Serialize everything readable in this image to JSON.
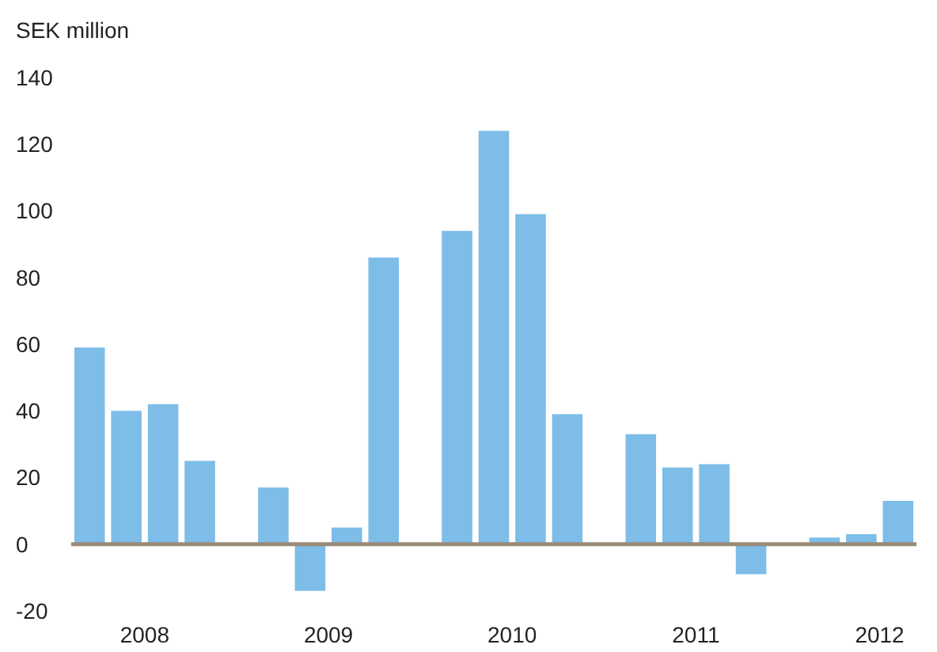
{
  "chart_data": {
    "type": "bar",
    "ylabel": "SEK million",
    "categories": [
      null,
      null,
      null,
      null,
      null,
      null,
      null,
      null,
      null,
      null,
      null,
      null,
      null,
      null,
      null,
      null,
      null,
      null,
      null,
      null,
      null,
      null,
      null
    ],
    "values": [
      59,
      40,
      42,
      25,
      null,
      17,
      -14,
      5,
      86,
      null,
      94,
      124,
      99,
      39,
      null,
      33,
      23,
      24,
      -9,
      null,
      2,
      3,
      13
    ],
    "color": "#7dbde8",
    "ylim": [
      -20,
      140
    ],
    "yticks": [
      -20,
      0,
      20,
      40,
      60,
      80,
      100,
      120,
      140
    ],
    "ref_lines": [
      {
        "axis": "y",
        "value": 0,
        "color": "#9a8a78"
      }
    ],
    "annotations": [
      "2008",
      "2009",
      "2010",
      "2011",
      "2012"
    ],
    "grid": false
  }
}
